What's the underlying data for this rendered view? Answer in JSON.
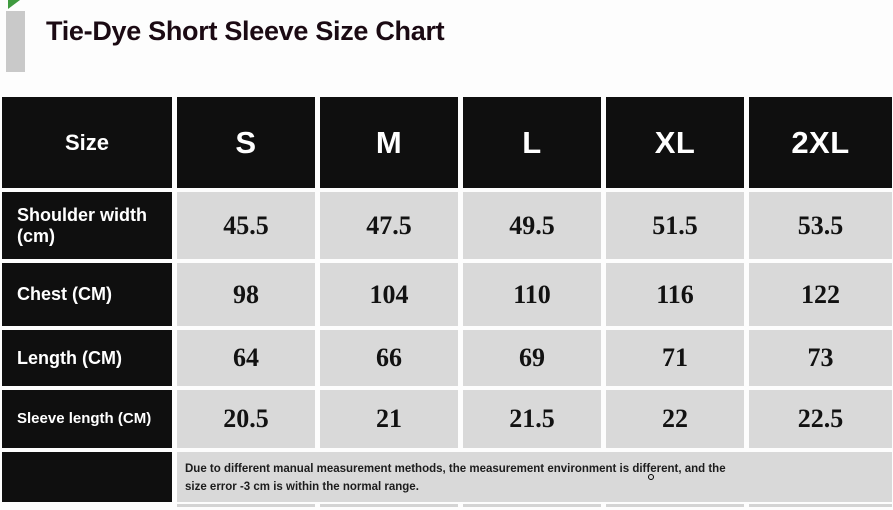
{
  "title": "Tie-Dye Short Sleeve Size Chart",
  "table": {
    "corner_label": "Size",
    "sizes": [
      "S",
      "M",
      "L",
      "XL",
      "2XL"
    ],
    "rows": [
      {
        "label": "Shoulder width (cm)",
        "values": [
          "45.5",
          "47.5",
          "49.5",
          "51.5",
          "53.5"
        ]
      },
      {
        "label": "Chest (CM)",
        "values": [
          "98",
          "104",
          "110",
          "116",
          "122"
        ]
      },
      {
        "label": "Length (CM)",
        "values": [
          "64",
          "66",
          "69",
          "71",
          "73"
        ]
      },
      {
        "label": "Sleeve length (CM)",
        "values": [
          "20.5",
          "21",
          "21.5",
          "22",
          "22.5"
        ]
      }
    ],
    "note_lines": [
      "Due to different manual measurement methods, the measurement environment is different, and the",
      "size error -3 cm is within the normal range."
    ]
  },
  "colors": {
    "header_bg": "#0f0f0f",
    "data_cell_bg": "#d9d9d9",
    "title_color": "#1b0a13",
    "corner_mark_green": "#3f9a3f",
    "accent_bar_gray": "#c9c9c9"
  }
}
